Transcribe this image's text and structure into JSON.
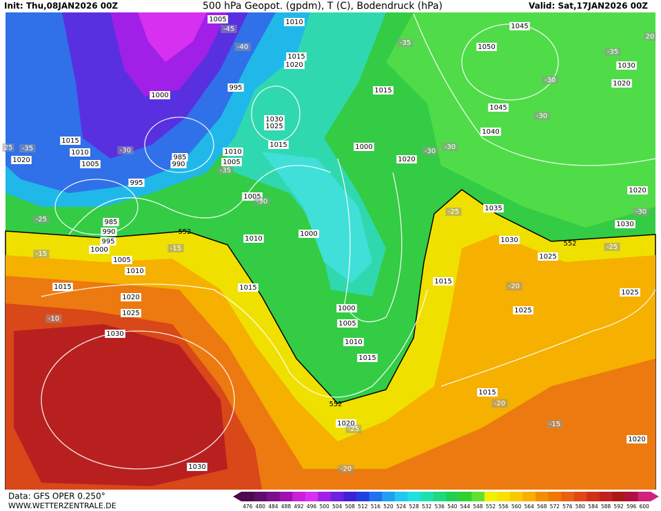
{
  "header": {
    "init": "Init: Thu,08JAN2026 00Z",
    "title": "500 hPa Geopot. (gpdm), T (C), Bodendruck (hPa)",
    "valid": "Valid: Sat,17JAN2026 00Z"
  },
  "footer": {
    "data": "Data: GFS OPER 0.250°",
    "site": "WWW.WETTERZENTRALE.DE"
  },
  "colorbar": {
    "labels": [
      476,
      480,
      484,
      488,
      492,
      496,
      500,
      504,
      508,
      512,
      516,
      520,
      524,
      528,
      532,
      536,
      540,
      544,
      548,
      552,
      556,
      560,
      564,
      568,
      572,
      576,
      580,
      584,
      588,
      592,
      596,
      600
    ],
    "colors": [
      "#4b0a4b",
      "#600c6b",
      "#7a0f8a",
      "#a010b0",
      "#c820d8",
      "#d830f0",
      "#a020e8",
      "#7020e0",
      "#4020d8",
      "#2040e0",
      "#2070f0",
      "#20a0f0",
      "#20c8f0",
      "#20e0e0",
      "#20e0b0",
      "#20d880",
      "#20d050",
      "#30d030",
      "#60e030",
      "#f0f000",
      "#f8e000",
      "#f8c800",
      "#f8b000",
      "#f09000",
      "#f07800",
      "#e86010",
      "#e04810",
      "#d03018",
      "#c02020",
      "#a81818",
      "#b01040",
      "#d02080"
    ]
  },
  "map": {
    "isobar_labels": [
      "1005",
      "1010",
      "1015",
      "1020",
      "995",
      "1000",
      "1030",
      "1025",
      "1015",
      "1010",
      "1005",
      "985",
      "990",
      "1015",
      "1010",
      "1020",
      "1005",
      "995",
      "985",
      "990",
      "995",
      "1000",
      "1005",
      "1010",
      "1015",
      "1020",
      "1025",
      "1030",
      "1030",
      "1005",
      "1010",
      "1015",
      "1000",
      "1000",
      "1005",
      "1010",
      "1015",
      "1015",
      "1000",
      "1020",
      "1045",
      "1050",
      "1045",
      "1040",
      "1030",
      "1020",
      "1035",
      "1030",
      "1030",
      "1020",
      "1025",
      "1015",
      "1025",
      "1025",
      "1015",
      "1020",
      "1020"
    ],
    "temperature_labels": [
      "-45",
      "-40",
      "-35",
      "-30",
      "-30",
      "-35",
      "-30",
      "-30",
      "-35",
      "-30",
      "-35",
      "-30",
      "-25",
      "-15",
      "-15",
      "-25",
      "-25",
      "-20",
      "-10",
      "-25",
      "-20",
      "-15",
      "-20",
      "25",
      "-30",
      "20"
    ],
    "geopotential_labels": [
      "552",
      "552",
      "552"
    ]
  }
}
